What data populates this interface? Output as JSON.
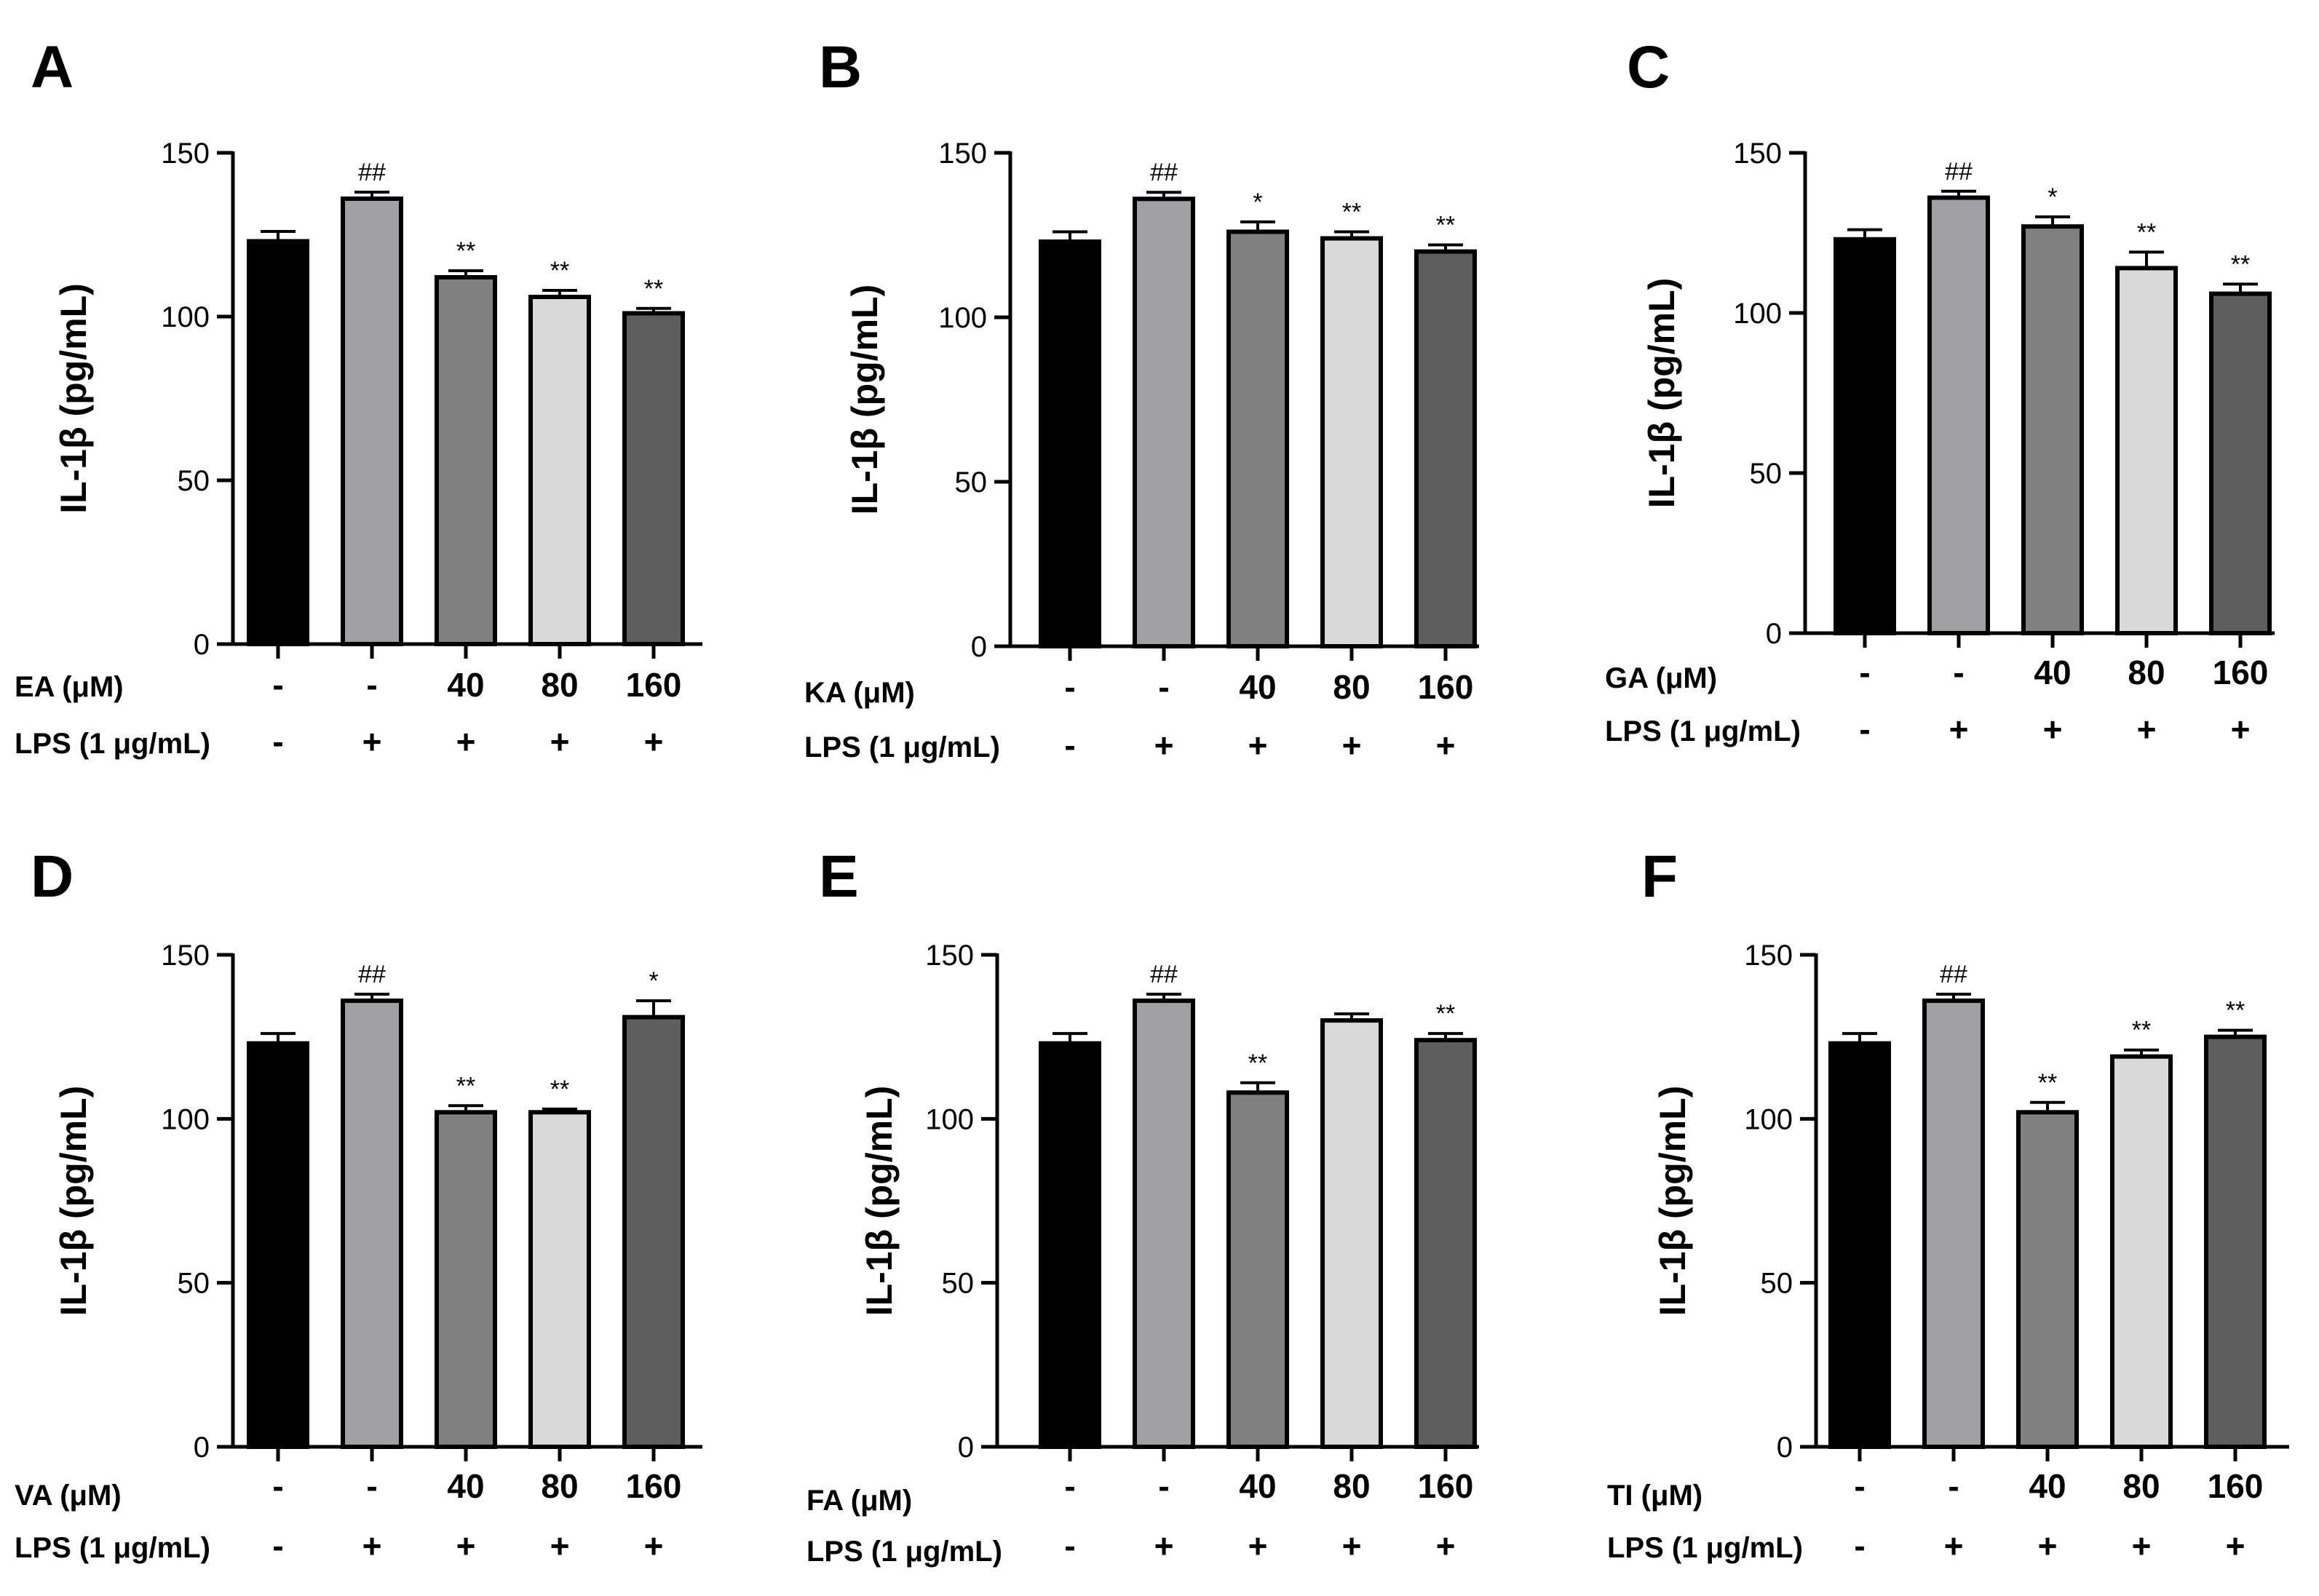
{
  "chart_data": [
    {
      "panel": "A",
      "type": "bar",
      "ylabel": "IL-1β (pg/mL)",
      "ylim": [
        0,
        150
      ],
      "yticks": [
        0,
        50,
        100,
        150
      ],
      "treatment_label": "EA (μM)",
      "lps_label": "LPS (1 μg/mL)",
      "treatment_values": [
        "-",
        "-",
        "40",
        "80",
        "160"
      ],
      "lps_values": [
        "-",
        "+",
        "+",
        "+",
        "+"
      ],
      "values": [
        123,
        136,
        112,
        106,
        101
      ],
      "errors": [
        3,
        2,
        2,
        2,
        1.5
      ],
      "significance": [
        "",
        "##",
        "**",
        "**",
        "**"
      ]
    },
    {
      "panel": "B",
      "type": "bar",
      "ylabel": "IL-1β (pg/mL)",
      "ylim": [
        0,
        150
      ],
      "yticks": [
        0,
        50,
        100,
        150
      ],
      "treatment_label": "KA (μM)",
      "lps_label": "LPS (1 μg/mL)",
      "treatment_values": [
        "-",
        "-",
        "40",
        "80",
        "160"
      ],
      "lps_values": [
        "-",
        "+",
        "+",
        "+",
        "+"
      ],
      "values": [
        123,
        136,
        126,
        124,
        120
      ],
      "errors": [
        3,
        2,
        3,
        2,
        2
      ],
      "significance": [
        "",
        "##",
        "*",
        "**",
        "**"
      ]
    },
    {
      "panel": "C",
      "type": "bar",
      "ylabel": "IL-1β (pg/mL)",
      "ylim": [
        0,
        150
      ],
      "yticks": [
        0,
        50,
        100,
        150
      ],
      "treatment_label": "GA (μM)",
      "lps_label": "LPS (1 μg/mL)",
      "treatment_values": [
        "-",
        "-",
        "40",
        "80",
        "160"
      ],
      "lps_values": [
        "-",
        "+",
        "+",
        "+",
        "+"
      ],
      "values": [
        123,
        136,
        127,
        114,
        106
      ],
      "errors": [
        3,
        2,
        3,
        5,
        3
      ],
      "significance": [
        "",
        "##",
        "*",
        "**",
        "**"
      ]
    },
    {
      "panel": "D",
      "type": "bar",
      "ylabel": "IL-1β (pg/mL)",
      "ylim": [
        0,
        150
      ],
      "yticks": [
        0,
        50,
        100,
        150
      ],
      "treatment_label": "VA (μM)",
      "lps_label": "LPS (1 μg/mL)",
      "treatment_values": [
        "-",
        "-",
        "40",
        "80",
        "160"
      ],
      "lps_values": [
        "-",
        "+",
        "+",
        "+",
        "+"
      ],
      "values": [
        123,
        136,
        102,
        102,
        131
      ],
      "errors": [
        3,
        2,
        2,
        1,
        5
      ],
      "significance": [
        "",
        "##",
        "**",
        "**",
        "*"
      ]
    },
    {
      "panel": "E",
      "type": "bar",
      "ylabel": "IL-1β (pg/mL)",
      "ylim": [
        0,
        150
      ],
      "yticks": [
        0,
        50,
        100,
        150
      ],
      "treatment_label": "FA (μM)",
      "lps_label": "LPS (1 μg/mL)",
      "treatment_values": [
        "-",
        "-",
        "40",
        "80",
        "160"
      ],
      "lps_values": [
        "-",
        "+",
        "+",
        "+",
        "+"
      ],
      "values": [
        123,
        136,
        108,
        130,
        124
      ],
      "errors": [
        3,
        2,
        3,
        2,
        2
      ],
      "significance": [
        "",
        "##",
        "**",
        "",
        "**"
      ]
    },
    {
      "panel": "F",
      "type": "bar",
      "ylabel": "IL-1β (pg/mL)",
      "ylim": [
        0,
        150
      ],
      "yticks": [
        0,
        50,
        100,
        150
      ],
      "treatment_label": "TI (μM)",
      "lps_label": "LPS (1 μg/mL)",
      "treatment_values": [
        "-",
        "-",
        "40",
        "80",
        "160"
      ],
      "lps_values": [
        "-",
        "+",
        "+",
        "+",
        "+"
      ],
      "values": [
        123,
        136,
        102,
        119,
        125
      ],
      "errors": [
        3,
        2,
        3,
        2,
        2
      ],
      "significance": [
        "",
        "##",
        "**",
        "**",
        "**"
      ]
    }
  ],
  "bar_colors": [
    "#000000",
    "#a0a0a3",
    "#808080",
    "#d9d9d9",
    "#5e5e5e"
  ]
}
